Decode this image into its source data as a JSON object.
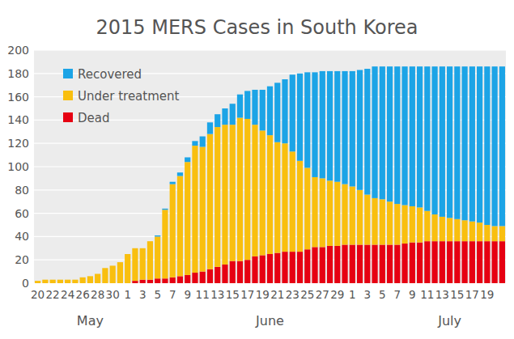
{
  "chart_data": {
    "type": "bar",
    "title": "2015 MERS Cases in South Korea",
    "stacked": true,
    "grid": true,
    "legend": "upper left",
    "categories": [
      "20",
      null,
      "22",
      null,
      "24",
      null,
      "26",
      null,
      "28",
      null,
      "30",
      null,
      "1",
      null,
      "3",
      null,
      "5",
      null,
      "7",
      null,
      "9",
      null,
      "11",
      null,
      "13",
      null,
      "15",
      null,
      "17",
      null,
      "19",
      null,
      "21",
      null,
      "23",
      null,
      "25",
      null,
      "27",
      null,
      "29",
      null,
      "1",
      null,
      "3",
      null,
      "5",
      null,
      "7",
      null,
      "9",
      null,
      "11",
      null,
      "13",
      null,
      "15",
      null,
      "17",
      null,
      "19",
      null,
      null
    ],
    "annotations": [
      "May",
      "June",
      "July"
    ],
    "ylim": [
      0,
      200
    ],
    "yticks": [
      0,
      20,
      40,
      60,
      80,
      100,
      120,
      140,
      160,
      180,
      200
    ],
    "series": [
      {
        "name": "Dead",
        "color": "#e60012",
        "values": [
          0,
          0,
          0,
          0,
          0,
          0,
          0,
          0,
          0,
          0,
          0,
          0,
          0,
          2,
          3,
          3,
          4,
          4,
          5,
          6,
          7,
          9,
          10,
          12,
          14,
          16,
          19,
          19,
          20,
          23,
          24,
          25,
          26,
          27,
          27,
          27,
          29,
          31,
          31,
          32,
          32,
          33,
          33,
          33,
          33,
          33,
          33,
          33,
          33,
          34,
          35,
          35,
          36,
          36,
          36,
          36,
          36,
          36,
          36,
          36,
          36,
          36,
          36
        ]
      },
      {
        "name": "Under treatment",
        "color": "#f9bf0f",
        "values": [
          2,
          3,
          3,
          3,
          3,
          3,
          5,
          6,
          8,
          13,
          15,
          18,
          25,
          28,
          27,
          33,
          36,
          59,
          80,
          86,
          97,
          109,
          107,
          116,
          120,
          120,
          117,
          123,
          121,
          113,
          107,
          102,
          95,
          93,
          86,
          78,
          70,
          60,
          59,
          56,
          55,
          52,
          50,
          47,
          43,
          40,
          39,
          37,
          35,
          33,
          31,
          30,
          26,
          23,
          21,
          20,
          19,
          18,
          17,
          16,
          14,
          13,
          13
        ]
      },
      {
        "name": "Recovered",
        "color": "#1ca4e6",
        "values": [
          0,
          0,
          0,
          0,
          0,
          0,
          0,
          0,
          0,
          0,
          0,
          0,
          0,
          0,
          0,
          0,
          1,
          1,
          2,
          3,
          4,
          4,
          9,
          10,
          11,
          14,
          18,
          20,
          24,
          30,
          35,
          42,
          51,
          55,
          66,
          75,
          82,
          90,
          92,
          94,
          95,
          97,
          99,
          103,
          108,
          113,
          114,
          116,
          118,
          119,
          120,
          121,
          124,
          127,
          129,
          130,
          131,
          132,
          133,
          134,
          136,
          137,
          137
        ]
      }
    ]
  }
}
